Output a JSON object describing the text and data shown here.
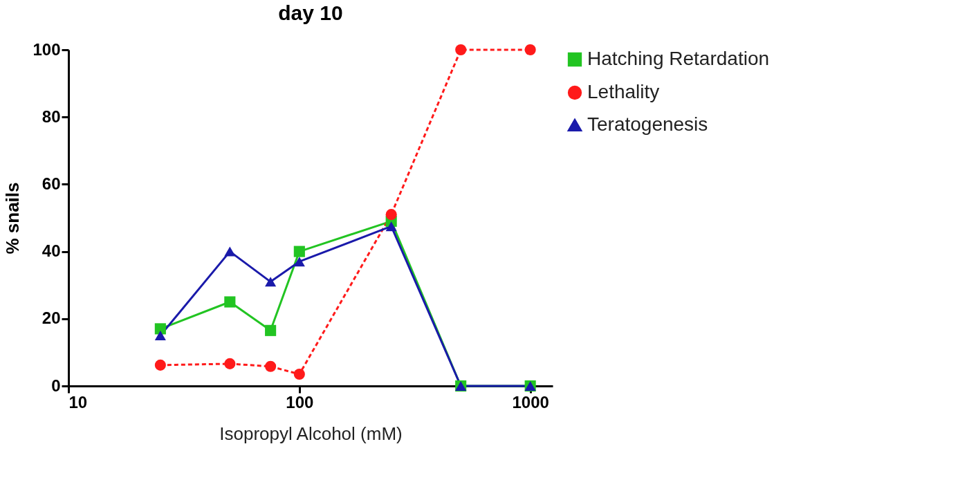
{
  "chart_data": {
    "type": "line",
    "title": "day 10",
    "xlabel": "Isopropyl Alcohol (mM)",
    "ylabel": "% snails",
    "x": [
      25,
      50,
      75,
      100,
      250,
      500,
      1000
    ],
    "series": [
      {
        "name": "Hatching Retardation",
        "color": "#22c422",
        "marker": "square",
        "line_style": "solid",
        "values": [
          17,
          25,
          16.5,
          40,
          49,
          0,
          0
        ]
      },
      {
        "name": "Lethality",
        "color": "#ff1a1a",
        "marker": "circle",
        "line_style": "dashed",
        "values": [
          6.2,
          6.6,
          5.8,
          3.5,
          51,
          100,
          100
        ]
      },
      {
        "name": "Teratogenesis",
        "color": "#1a1aaa",
        "marker": "triangle",
        "line_style": "solid",
        "values": [
          15,
          40,
          31,
          37,
          47.5,
          0,
          0
        ]
      }
    ],
    "log": "x",
    "xlim": [
      10,
      1250
    ],
    "xticks": [
      10,
      100,
      1000
    ],
    "ylim": [
      0,
      100
    ],
    "yticks": [
      0,
      20,
      40,
      60,
      80,
      100
    ],
    "grid": false,
    "legend": "right"
  }
}
